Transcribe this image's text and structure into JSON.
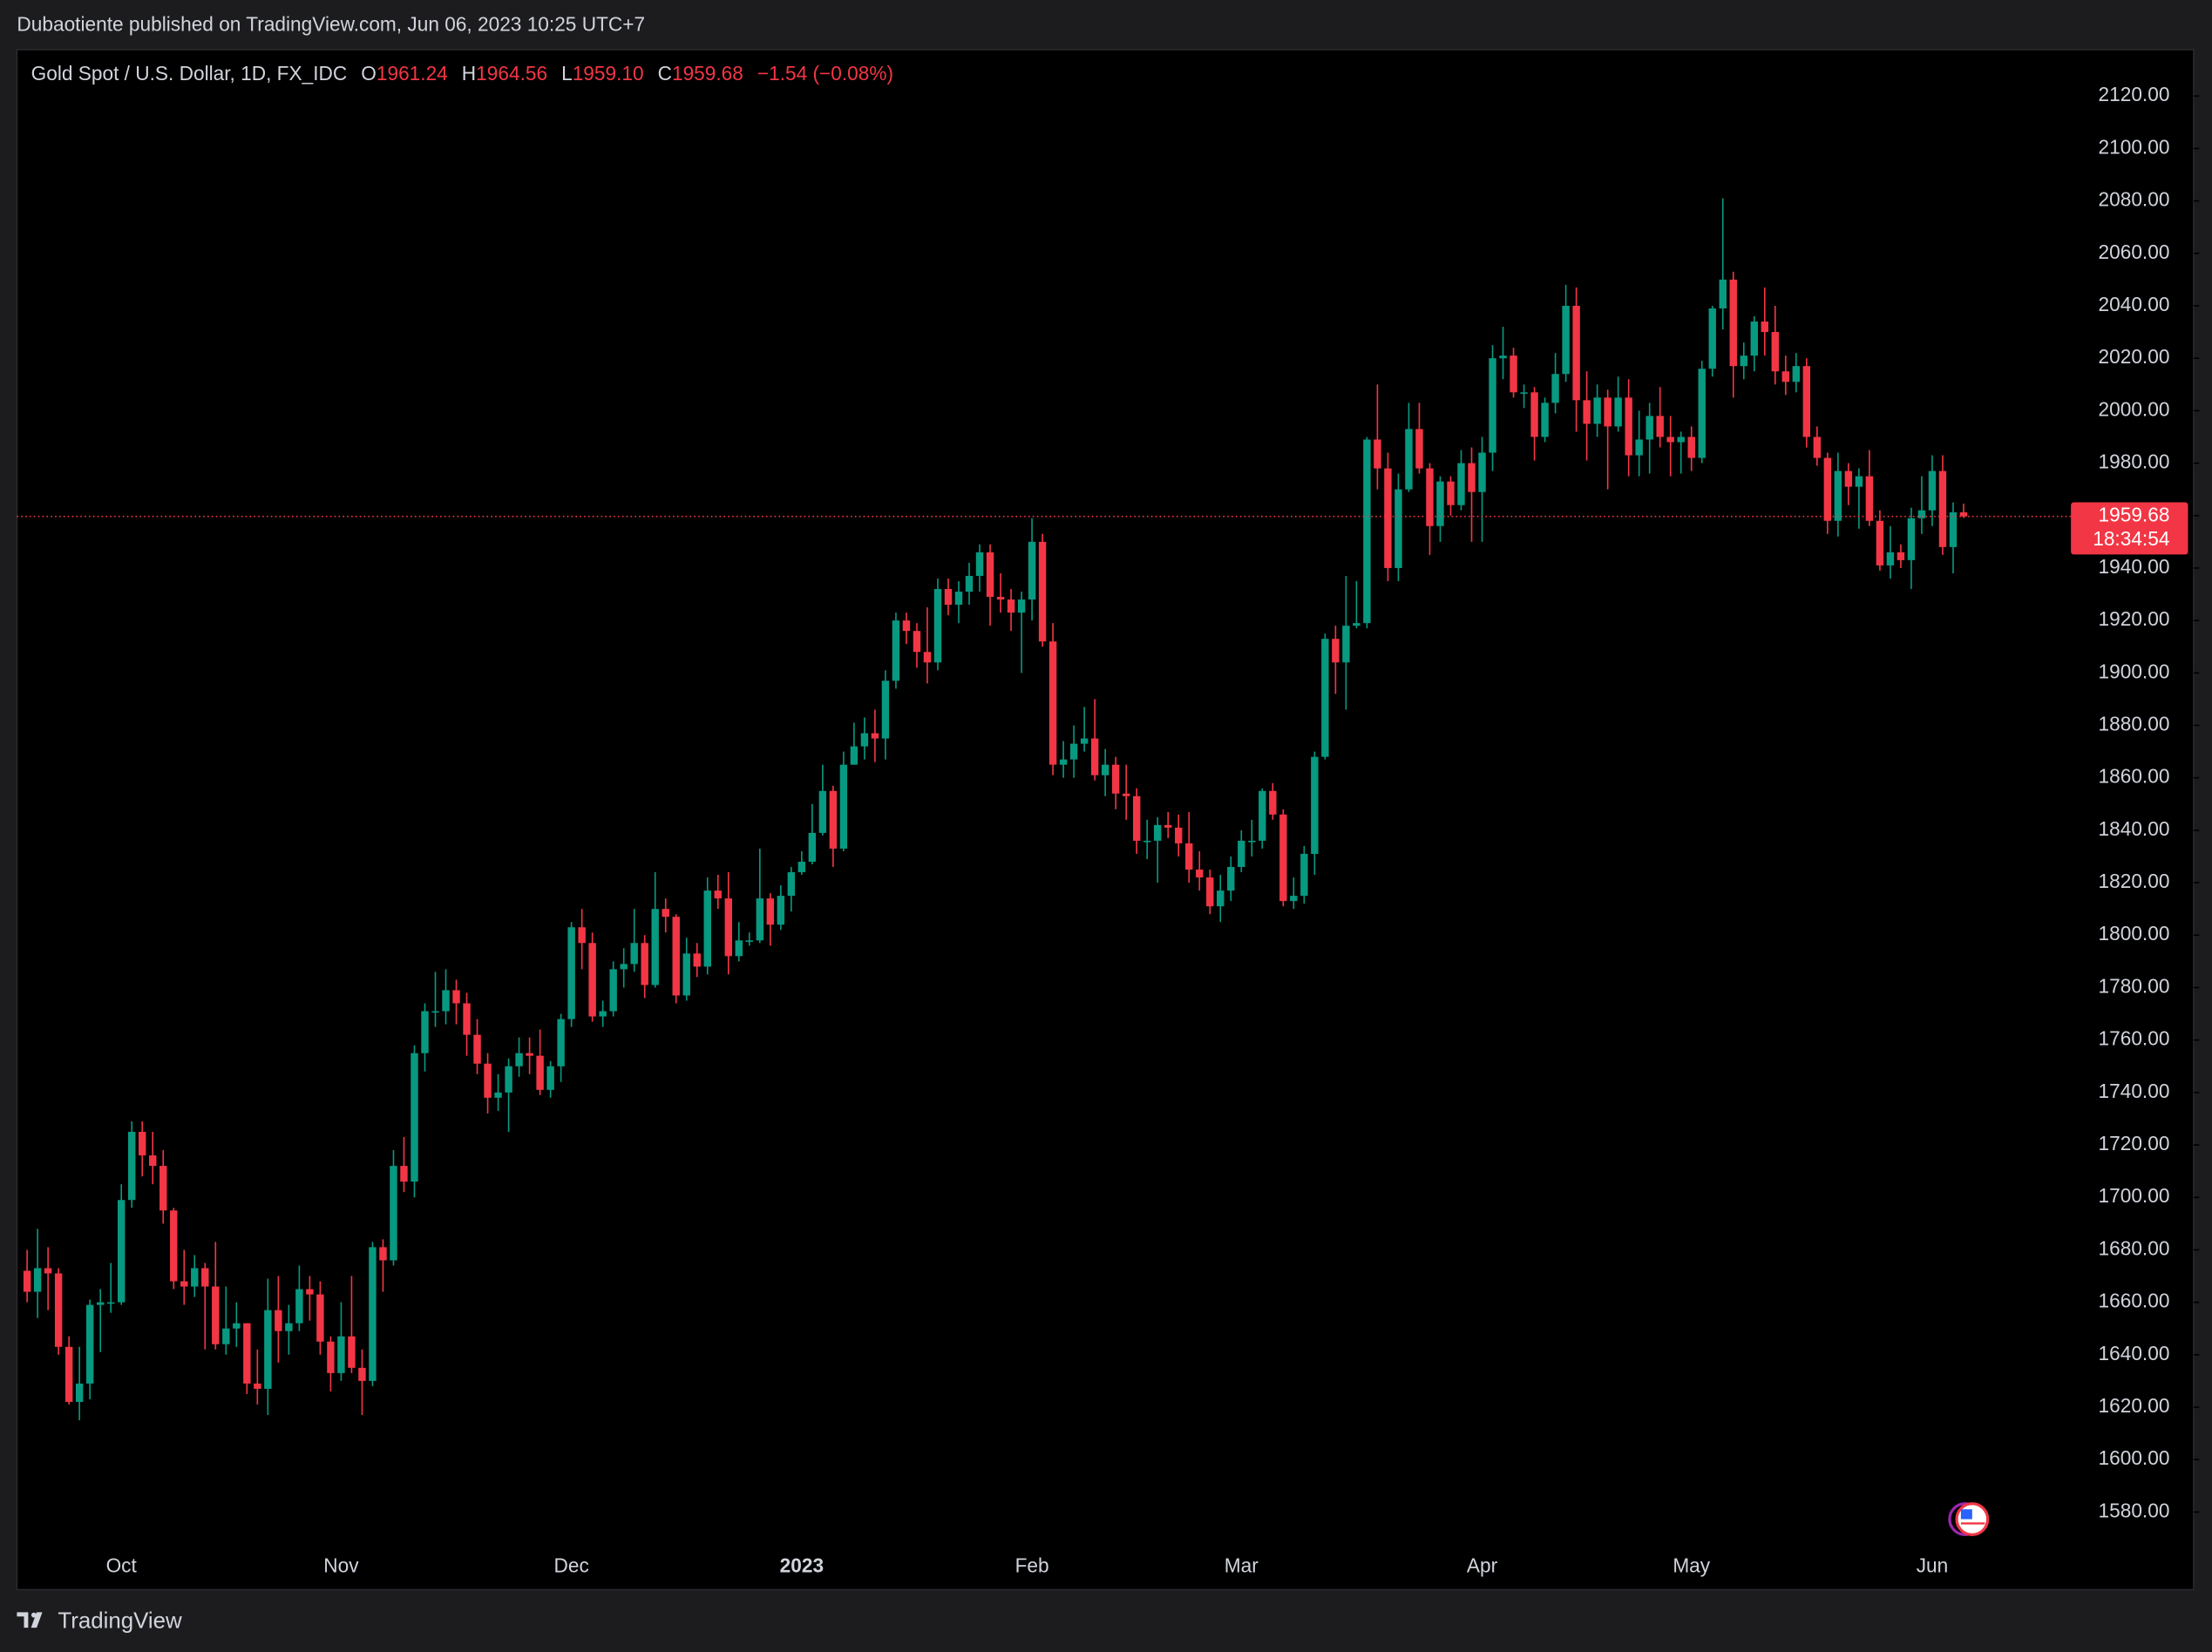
{
  "header": "Dubaotiente published on TradingView.com, Jun 06, 2023 10:25 UTC+7",
  "footer": "TradingView",
  "chart_data": {
    "type": "candlestick",
    "symbol": "Gold Spot / U.S. Dollar, 1D, FX_IDC",
    "legend": [
      {
        "key": "O",
        "label": "1961.24"
      },
      {
        "key": "H",
        "label": "1964.56"
      },
      {
        "key": "L",
        "label": "1959.10"
      },
      {
        "key": "C",
        "label": "1959.68"
      }
    ],
    "change": "−1.54 (−0.08%)",
    "countdown": "18:34:54",
    "up_color": "#089981",
    "down_color": "#f23645",
    "categories": [
      null,
      null,
      null,
      null,
      null,
      null,
      null,
      null,
      null,
      "Oct",
      null,
      null,
      null,
      null,
      null,
      null,
      null,
      null,
      null,
      null,
      null,
      null,
      null,
      null,
      null,
      null,
      null,
      null,
      null,
      null,
      "Nov",
      null,
      null,
      null,
      null,
      null,
      null,
      null,
      null,
      null,
      null,
      null,
      null,
      null,
      null,
      null,
      null,
      null,
      null,
      null,
      null,
      null,
      "Dec",
      null,
      null,
      null,
      null,
      null,
      null,
      null,
      null,
      null,
      null,
      null,
      null,
      null,
      null,
      null,
      null,
      null,
      null,
      null,
      null,
      null,
      "2023",
      null,
      null,
      null,
      null,
      null,
      null,
      null,
      null,
      null,
      null,
      null,
      null,
      null,
      null,
      null,
      null,
      null,
      null,
      null,
      null,
      null,
      "Feb",
      null,
      null,
      null,
      null,
      null,
      null,
      null,
      null,
      null,
      null,
      null,
      null,
      null,
      null,
      null,
      null,
      null,
      null,
      null,
      "Mar",
      null,
      null,
      null,
      null,
      null,
      null,
      null,
      null,
      null,
      null,
      null,
      null,
      null,
      null,
      null,
      null,
      null,
      null,
      null,
      null,
      null,
      null,
      "Apr",
      null,
      null,
      null,
      null,
      null,
      null,
      null,
      null,
      null,
      null,
      null,
      null,
      null,
      null,
      null,
      null,
      null,
      null,
      null,
      "May",
      null,
      null,
      null,
      null,
      null,
      null,
      null,
      null,
      null,
      null,
      null,
      null,
      null,
      null,
      null,
      null,
      null,
      null,
      null,
      null,
      null,
      null,
      "Jun",
      null,
      null,
      null
    ],
    "open": [
      1672,
      1664,
      1673,
      1671,
      1643,
      1622,
      1629,
      1659,
      1660,
      1660,
      1699,
      1725,
      1716,
      1712,
      1695,
      1668,
      1666,
      1673,
      1666,
      1644,
      1650,
      1652,
      1629,
      1627,
      1657,
      1649,
      1652,
      1665,
      1663,
      1645,
      1633,
      1647,
      1635,
      1630,
      1681,
      1676,
      1712,
      1706,
      1755,
      1771,
      1771,
      1779,
      1774,
      1762,
      1751,
      1738,
      1740,
      1750,
      1755,
      1754,
      1741,
      1750,
      1768,
      1803,
      1797,
      1769,
      1771,
      1787,
      1789,
      1797,
      1781,
      1810,
      1807,
      1777,
      1793,
      1788,
      1817,
      1814,
      1792,
      1798,
      1798,
      1814,
      1804,
      1815,
      1824,
      1828,
      1839,
      1855,
      1833,
      1865,
      1872,
      1877,
      1875,
      1897,
      1920,
      1916,
      1908,
      1904,
      1932,
      1926,
      1931,
      1937,
      1946,
      1929,
      1928,
      1923,
      1928,
      1950,
      1912,
      1865,
      1867,
      1873,
      1875,
      1861,
      1865,
      1854,
      1853,
      1836,
      1836,
      1842,
      1841,
      1835,
      1825,
      1822,
      1811,
      1817,
      1826,
      1836,
      1836,
      1855,
      1846,
      1813,
      1815,
      1831,
      1868,
      1913,
      1904,
      1918,
      1919,
      1989,
      1978,
      1940,
      1970,
      1993,
      1978,
      1956,
      1973,
      1964,
      1980,
      1969,
      1984,
      2020,
      2021,
      2007,
      2007,
      1990,
      2003,
      2014,
      2040,
      2004,
      1995,
      2005,
      1994,
      2005,
      1983,
      1989,
      1998,
      1990,
      1988,
      1990,
      1982,
      2016,
      2039,
      2050,
      2017,
      2021,
      2034,
      2030,
      2015,
      2011,
      2017,
      1990,
      1982,
      1958,
      1977,
      1971,
      1975,
      1958,
      1941,
      1946,
      1943,
      1959,
      1962,
      1977,
      1948,
      1961.24
    ],
    "high": [
      1680,
      1688,
      1681,
      1673,
      1647,
      1643,
      1661,
      1665,
      1675,
      1705,
      1729,
      1729,
      1725,
      1718,
      1696,
      1680,
      1678,
      1675,
      1683,
      1666,
      1660,
      1652,
      1642,
      1669,
      1670,
      1659,
      1674,
      1670,
      1668,
      1647,
      1660,
      1670,
      1642,
      1683,
      1684,
      1718,
      1723,
      1758,
      1774,
      1786,
      1787,
      1783,
      1778,
      1768,
      1755,
      1747,
      1753,
      1761,
      1761,
      1764,
      1752,
      1770,
      1805,
      1810,
      1801,
      1775,
      1790,
      1795,
      1810,
      1800,
      1824,
      1814,
      1808,
      1799,
      1797,
      1822,
      1823,
      1824,
      1805,
      1801,
      1833,
      1816,
      1819,
      1826,
      1832,
      1850,
      1865,
      1857,
      1870,
      1881,
      1883,
      1886,
      1901,
      1923,
      1923,
      1919,
      1925,
      1936,
      1936,
      1935,
      1942,
      1949,
      1949,
      1938,
      1932,
      1931,
      1959,
      1953,
      1919,
      1874,
      1880,
      1887,
      1890,
      1871,
      1868,
      1865,
      1856,
      1844,
      1845,
      1847,
      1846,
      1847,
      1832,
      1825,
      1823,
      1830,
      1840,
      1844,
      1856,
      1858,
      1848,
      1822,
      1834,
      1870,
      1915,
      1918,
      1937,
      1935,
      1990,
      2010,
      1984,
      1976,
      2003,
      2003,
      1980,
      1975,
      1975,
      1985,
      1986,
      1990,
      2025,
      2032,
      2024,
      2010,
      2009,
      2005,
      2022,
      2048,
      2047,
      2015,
      2010,
      2008,
      2013,
      2012,
      2000,
      2003,
      2009,
      1998,
      1992,
      1994,
      2019,
      2040,
      2081,
      2053,
      2026,
      2036,
      2047,
      2040,
      2021,
      2022,
      2020,
      1994,
      1984,
      1984,
      1980,
      1978,
      1985,
      1962,
      1956,
      1949,
      1963,
      1975,
      1983,
      1983,
      1965,
      1964.56
    ],
    "low": [
      1660,
      1654,
      1657,
      1640,
      1621,
      1615,
      1623,
      1641,
      1656,
      1659,
      1696,
      1708,
      1705,
      1690,
      1665,
      1659,
      1662,
      1642,
      1642,
      1640,
      1643,
      1625,
      1621,
      1617,
      1637,
      1640,
      1649,
      1653,
      1640,
      1626,
      1630,
      1633,
      1617,
      1628,
      1664,
      1674,
      1702,
      1700,
      1748,
      1765,
      1766,
      1766,
      1754,
      1747,
      1732,
      1733,
      1725,
      1746,
      1747,
      1739,
      1738,
      1744,
      1765,
      1787,
      1767,
      1765,
      1769,
      1780,
      1786,
      1776,
      1780,
      1801,
      1774,
      1775,
      1784,
      1785,
      1810,
      1785,
      1790,
      1796,
      1797,
      1796,
      1802,
      1809,
      1823,
      1827,
      1838,
      1826,
      1832,
      1865,
      1867,
      1866,
      1867,
      1894,
      1911,
      1902,
      1896,
      1901,
      1922,
      1919,
      1926,
      1931,
      1918,
      1923,
      1916,
      1900,
      1920,
      1910,
      1861,
      1860,
      1860,
      1870,
      1859,
      1853,
      1848,
      1844,
      1831,
      1829,
      1820,
      1837,
      1830,
      1820,
      1817,
      1808,
      1805,
      1813,
      1824,
      1830,
      1833,
      1844,
      1811,
      1810,
      1812,
      1823,
      1867,
      1892,
      1886,
      1917,
      1917,
      1970,
      1935,
      1935,
      1969,
      1976,
      1945,
      1950,
      1960,
      1962,
      1950,
      1950,
      1977,
      2012,
      2005,
      2001,
      1981,
      1988,
      1999,
      2011,
      1992,
      1981,
      1990,
      1970,
      1992,
      1975,
      1975,
      1976,
      1986,
      1975,
      1976,
      1977,
      1980,
      2013,
      2031,
      2005,
      2012,
      2015,
      2021,
      2010,
      2006,
      2007,
      1986,
      1979,
      1953,
      1952,
      1964,
      1955,
      1956,
      1939,
      1936,
      1940,
      1932,
      1953,
      1956,
      1945,
      1938,
      1959.1
    ],
    "close": [
      1664,
      1673,
      1671,
      1643,
      1622,
      1629,
      1659,
      1660,
      1660,
      1699,
      1725,
      1716,
      1712,
      1695,
      1668,
      1666,
      1673,
      1666,
      1644,
      1650,
      1652,
      1629,
      1627,
      1657,
      1649,
      1652,
      1665,
      1663,
      1645,
      1633,
      1647,
      1635,
      1630,
      1681,
      1676,
      1712,
      1706,
      1755,
      1771,
      1771,
      1779,
      1774,
      1762,
      1751,
      1738,
      1740,
      1750,
      1755,
      1754,
      1741,
      1750,
      1768,
      1803,
      1797,
      1769,
      1771,
      1787,
      1789,
      1797,
      1781,
      1810,
      1807,
      1777,
      1793,
      1788,
      1817,
      1814,
      1792,
      1798,
      1798,
      1814,
      1804,
      1815,
      1824,
      1828,
      1839,
      1855,
      1833,
      1865,
      1872,
      1877,
      1875,
      1897,
      1920,
      1916,
      1908,
      1904,
      1932,
      1926,
      1931,
      1937,
      1946,
      1929,
      1928,
      1923,
      1928,
      1950,
      1912,
      1865,
      1867,
      1873,
      1875,
      1861,
      1865,
      1854,
      1853,
      1836,
      1836,
      1842,
      1841,
      1835,
      1825,
      1822,
      1811,
      1817,
      1826,
      1836,
      1836,
      1855,
      1846,
      1813,
      1815,
      1831,
      1868,
      1913,
      1904,
      1918,
      1919,
      1989,
      1978,
      1940,
      1970,
      1993,
      1978,
      1956,
      1973,
      1964,
      1980,
      1969,
      1984,
      2020,
      2021,
      2007,
      2007,
      1990,
      2003,
      2014,
      2040,
      2004,
      1995,
      2005,
      1994,
      2005,
      1983,
      1989,
      1998,
      1990,
      1988,
      1990,
      1982,
      2016,
      2039,
      2050,
      2017,
      2021,
      2034,
      2030,
      2015,
      2011,
      2017,
      1990,
      1982,
      1958,
      1977,
      1971,
      1975,
      1958,
      1941,
      1946,
      1943,
      1959,
      1962,
      1977,
      1948,
      1961.24,
      1959.68
    ],
    "ylim": [
      1567.6,
      2137.7
    ],
    "yticks": [
      {
        "value": 1580,
        "label": "1580.00"
      },
      {
        "value": 1600,
        "label": "1600.00"
      },
      {
        "value": 1620,
        "label": "1620.00"
      },
      {
        "value": 1640,
        "label": "1640.00"
      },
      {
        "value": 1660,
        "label": "1660.00"
      },
      {
        "value": 1680,
        "label": "1680.00"
      },
      {
        "value": 1700,
        "label": "1700.00"
      },
      {
        "value": 1720,
        "label": "1720.00"
      },
      {
        "value": 1740,
        "label": "1740.00"
      },
      {
        "value": 1760,
        "label": "1760.00"
      },
      {
        "value": 1780,
        "label": "1780.00"
      },
      {
        "value": 1800,
        "label": "1800.00"
      },
      {
        "value": 1820,
        "label": "1820.00"
      },
      {
        "value": 1840,
        "label": "1840.00"
      },
      {
        "value": 1860,
        "label": "1860.00"
      },
      {
        "value": 1880,
        "label": "1880.00"
      },
      {
        "value": 1900,
        "label": "1900.00"
      },
      {
        "value": 1920,
        "label": "1920.00"
      },
      {
        "value": 1940,
        "label": "1940.00"
      },
      {
        "value": 1960,
        "label": "1960.00"
      },
      {
        "value": 1980,
        "label": "1980.00"
      },
      {
        "value": 2000,
        "label": "2000.00"
      },
      {
        "value": 2020,
        "label": "2020.00"
      },
      {
        "value": 2040,
        "label": "2040.00"
      },
      {
        "value": 2060,
        "label": "2060.00"
      },
      {
        "value": 2080,
        "label": "2080.00"
      },
      {
        "value": 2100,
        "label": "2100.00"
      },
      {
        "value": 2120,
        "label": "2120.00"
      }
    ],
    "grid": false
  }
}
